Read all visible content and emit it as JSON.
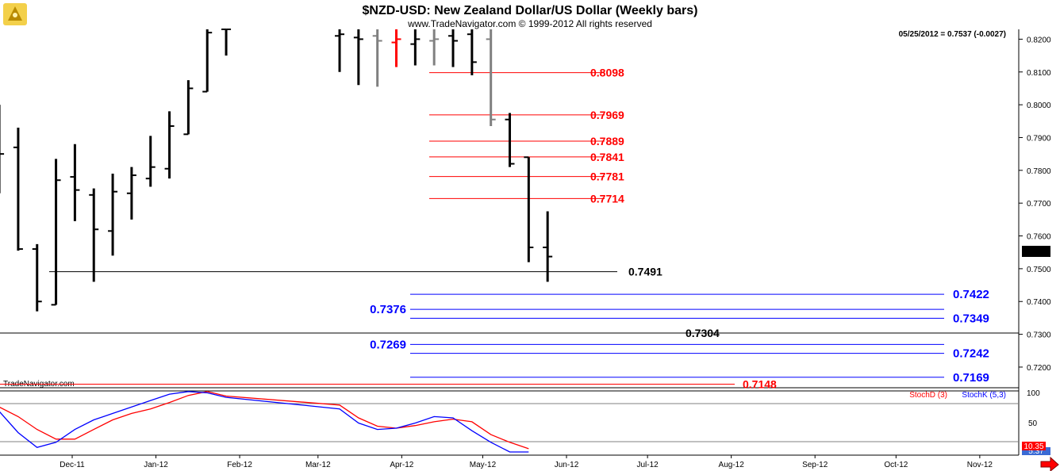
{
  "title": "$NZD-USD:  New Zealand Dollar/US Dollar  (Weekly bars)",
  "copyright": "www.TradeNavigator.com © 1999-2012 All rights reserved",
  "info_line": "05/25/2012 = 0.7537 (-0.0027)",
  "watermark": "TradeNavigator.com",
  "chart_data": [
    {
      "type": "ohlc",
      "title": "$NZD-USD:  New Zealand Dollar/US Dollar  (Weekly bars)",
      "y_ticks": [
        "0.8200",
        "0.8100",
        "0.8000",
        "0.7900",
        "0.7800",
        "0.7700",
        "0.7600",
        "0.7500",
        "0.7400",
        "0.7300",
        "0.7200"
      ],
      "ylim": [
        0.7137,
        0.823
      ],
      "last_price_label": "0.7537",
      "colors": {
        "up": "#000000",
        "down": "#000000",
        "neutral": "#808080",
        "highlight": "#ff0000"
      },
      "bars": [
        {
          "date": "2011-11-04",
          "open": 0.7935,
          "high": 0.8,
          "low": 0.773,
          "close": 0.785,
          "color": "black"
        },
        {
          "date": "2011-11-11",
          "open": 0.787,
          "high": 0.793,
          "low": 0.7555,
          "close": 0.756,
          "color": "black"
        },
        {
          "date": "2011-11-18",
          "open": 0.756,
          "high": 0.7575,
          "low": 0.737,
          "close": 0.74,
          "color": "black"
        },
        {
          "date": "2011-11-25",
          "open": 0.739,
          "high": 0.7835,
          "low": 0.739,
          "close": 0.777,
          "color": "black"
        },
        {
          "date": "2011-12-02",
          "open": 0.778,
          "high": 0.788,
          "low": 0.7645,
          "close": 0.774,
          "color": "black"
        },
        {
          "date": "2011-12-09",
          "open": 0.7725,
          "high": 0.7745,
          "low": 0.746,
          "close": 0.762,
          "color": "black"
        },
        {
          "date": "2011-12-16",
          "open": 0.7615,
          "high": 0.779,
          "low": 0.754,
          "close": 0.7735,
          "color": "black"
        },
        {
          "date": "2011-12-23",
          "open": 0.773,
          "high": 0.781,
          "low": 0.765,
          "close": 0.7785,
          "color": "black"
        },
        {
          "date": "2011-12-30",
          "open": 0.7775,
          "high": 0.7905,
          "low": 0.775,
          "close": 0.781,
          "color": "black"
        },
        {
          "date": "2012-01-06",
          "open": 0.7805,
          "high": 0.798,
          "low": 0.7775,
          "close": 0.7935,
          "color": "black"
        },
        {
          "date": "2012-01-13",
          "open": 0.791,
          "high": 0.8075,
          "low": 0.791,
          "close": 0.805,
          "color": "black"
        },
        {
          "date": "2012-01-20",
          "open": 0.804,
          "high": 0.823,
          "low": 0.804,
          "close": 0.822,
          "color": "black"
        },
        {
          "date": "2012-01-27",
          "open": 0.823,
          "high": 0.823,
          "low": 0.815,
          "close": 0.823,
          "color": "black"
        },
        {
          "date": "2012-03-09",
          "open": 0.821,
          "high": 0.823,
          "low": 0.81,
          "close": 0.8215,
          "color": "black"
        },
        {
          "date": "2012-03-16",
          "open": 0.8205,
          "high": 0.823,
          "low": 0.806,
          "close": 0.82,
          "color": "black"
        },
        {
          "date": "2012-03-23",
          "open": 0.821,
          "high": 0.823,
          "low": 0.8055,
          "close": 0.8195,
          "color": "gray"
        },
        {
          "date": "2012-03-30",
          "open": 0.819,
          "high": 0.823,
          "low": 0.8115,
          "close": 0.82,
          "color": "red"
        },
        {
          "date": "2012-04-06",
          "open": 0.8185,
          "high": 0.823,
          "low": 0.812,
          "close": 0.82,
          "color": "black"
        },
        {
          "date": "2012-04-13",
          "open": 0.8195,
          "high": 0.823,
          "low": 0.812,
          "close": 0.82,
          "color": "gray"
        },
        {
          "date": "2012-04-20",
          "open": 0.821,
          "high": 0.823,
          "low": 0.8115,
          "close": 0.8195,
          "color": "black"
        },
        {
          "date": "2012-04-27",
          "open": 0.8215,
          "high": 0.823,
          "low": 0.809,
          "close": 0.813,
          "color": "black"
        },
        {
          "date": "2012-05-04",
          "open": 0.82,
          "high": 0.823,
          "low": 0.7935,
          "close": 0.7955,
          "color": "gray"
        },
        {
          "date": "2012-05-11",
          "open": 0.7955,
          "high": 0.7975,
          "low": 0.781,
          "close": 0.782,
          "color": "black"
        },
        {
          "date": "2012-05-18",
          "open": 0.784,
          "high": 0.784,
          "low": 0.752,
          "close": 0.7565,
          "color": "black"
        },
        {
          "date": "2012-05-25",
          "open": 0.7565,
          "high": 0.7675,
          "low": 0.746,
          "close": 0.7537,
          "color": "black"
        }
      ],
      "levels": [
        {
          "value": "0.8098",
          "color": "#ff0000",
          "side": "mid"
        },
        {
          "value": "0.7969",
          "color": "#ff0000",
          "side": "mid"
        },
        {
          "value": "0.7889",
          "color": "#ff0000",
          "side": "mid"
        },
        {
          "value": "0.7841",
          "color": "#ff0000",
          "side": "mid"
        },
        {
          "value": "0.7781",
          "color": "#ff0000",
          "side": "mid"
        },
        {
          "value": "0.7714",
          "color": "#ff0000",
          "side": "mid"
        },
        {
          "value": "0.7491",
          "color": "#000000",
          "side": "black-mid"
        },
        {
          "value": "0.7422",
          "color": "#0000ff",
          "side": "right"
        },
        {
          "value": "0.7376",
          "color": "#0000ff",
          "side": "left"
        },
        {
          "value": "0.7349",
          "color": "#0000ff",
          "side": "right"
        },
        {
          "value": "0.7304",
          "color": "#000000",
          "side": "black-low"
        },
        {
          "value": "0.7269",
          "color": "#0000ff",
          "side": "left"
        },
        {
          "value": "0.7242",
          "color": "#0000ff",
          "side": "right"
        },
        {
          "value": "0.7169",
          "color": "#0000ff",
          "side": "right"
        },
        {
          "value": "0.7148",
          "color": "#ff0000",
          "side": "low-red"
        }
      ]
    },
    {
      "type": "line",
      "title": "",
      "legend": [
        "StochD (3)",
        "StochK (5,3)"
      ],
      "y_ticks": [
        "100",
        "50"
      ],
      "ylim": [
        0,
        100
      ],
      "last_value_label": "10.35",
      "last_value_label_2": "5.37",
      "x_tick_labels": [
        "Dec-11",
        "Jan-12",
        "Feb-12",
        "Mar-12",
        "Apr-12",
        "May-12",
        "Jun-12",
        "Jul-12",
        "Aug-12",
        "Sep-12",
        "Oct-12",
        "Nov-12"
      ],
      "series": [
        {
          "name": "StochD (3)",
          "color": "#ff0000",
          "values": [
            75,
            60,
            40,
            25,
            25,
            40,
            55,
            65,
            72,
            82,
            93,
            99,
            92,
            78,
            58,
            45,
            42,
            46,
            52,
            56,
            52,
            32,
            20,
            10
          ]
        },
        {
          "name": "StochK (5,3)",
          "color": "#0000ff",
          "values": [
            68,
            35,
            12,
            20,
            40,
            55,
            65,
            75,
            85,
            95,
            99,
            97,
            90,
            72,
            50,
            40,
            42,
            50,
            60,
            58,
            38,
            20,
            5,
            5
          ]
        }
      ]
    }
  ]
}
